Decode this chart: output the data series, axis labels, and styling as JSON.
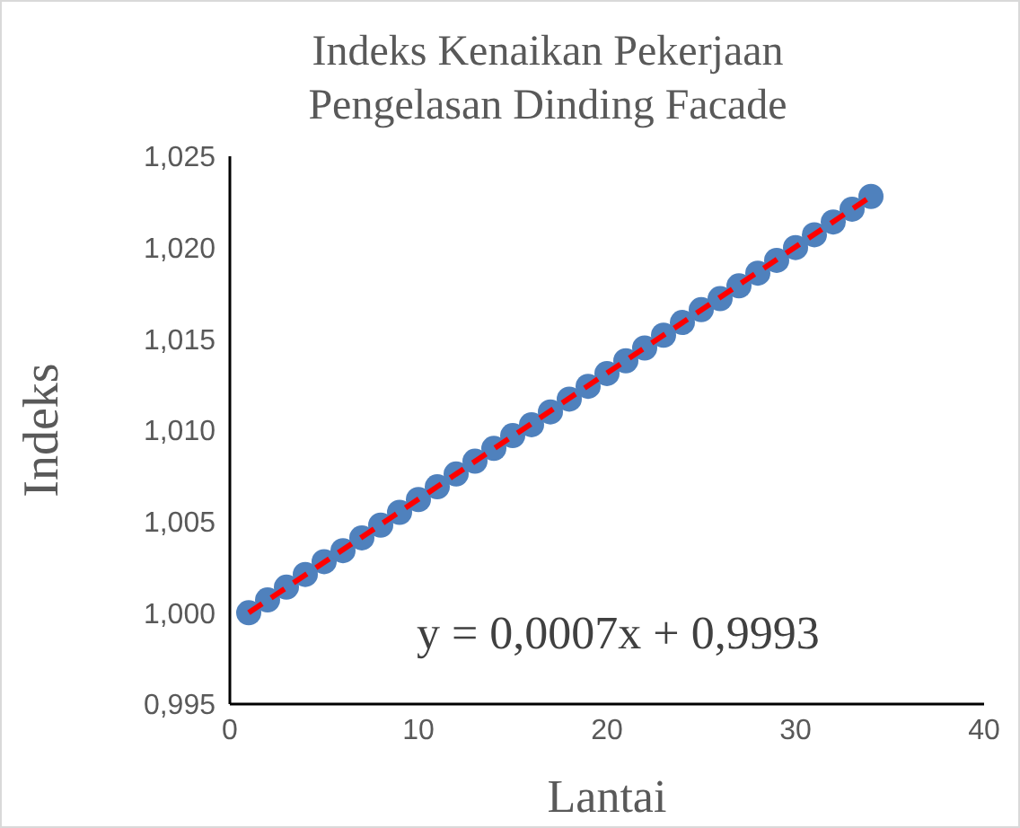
{
  "chart_data": {
    "type": "scatter",
    "title": "Indeks Kenaikan Pekerjaan\nPengelasan Dinding Facade",
    "xlabel": "Lantai",
    "ylabel": "Indeks",
    "x": [
      1,
      2,
      3,
      4,
      5,
      6,
      7,
      8,
      9,
      10,
      11,
      12,
      13,
      14,
      15,
      16,
      17,
      18,
      19,
      20,
      21,
      22,
      23,
      24,
      25,
      26,
      27,
      28,
      29,
      30,
      31,
      32,
      33,
      34
    ],
    "series": [
      {
        "color": "#4f81bd",
        "marker": "circle",
        "values": [
          1.0,
          1.0007,
          1.0014,
          1.0021,
          1.0028,
          1.0034,
          1.0041,
          1.0048,
          1.0055,
          1.0062,
          1.0069,
          1.0076,
          1.0083,
          1.009,
          1.0097,
          1.0103,
          1.011,
          1.0117,
          1.0124,
          1.0131,
          1.0138,
          1.0145,
          1.0152,
          1.0159,
          1.0166,
          1.0172,
          1.0179,
          1.0186,
          1.0193,
          1.02,
          1.0207,
          1.0214,
          1.0221,
          1.0228
        ]
      },
      {
        "type": "line",
        "color": "#ff0000",
        "line_style": "dashed",
        "marker": "none",
        "x": [
          1,
          34
        ],
        "values": [
          1.0,
          1.0228
        ]
      }
    ],
    "xlim": [
      0,
      40
    ],
    "xticks": [
      0,
      10,
      20,
      30,
      40
    ],
    "ylim": [
      0.995,
      1.025
    ],
    "yticks": [
      {
        "value": 0.995,
        "label": "0,995"
      },
      {
        "value": 1.0,
        "label": "1,000"
      },
      {
        "value": 1.005,
        "label": "1,005"
      },
      {
        "value": 1.01,
        "label": "1,010"
      },
      {
        "value": 1.015,
        "label": "1,015"
      },
      {
        "value": 1.02,
        "label": "1,020"
      },
      {
        "value": 1.025,
        "label": "1,025"
      }
    ],
    "annotations": [
      "y = 0,0007x + 0,9993"
    ],
    "grid": false
  }
}
